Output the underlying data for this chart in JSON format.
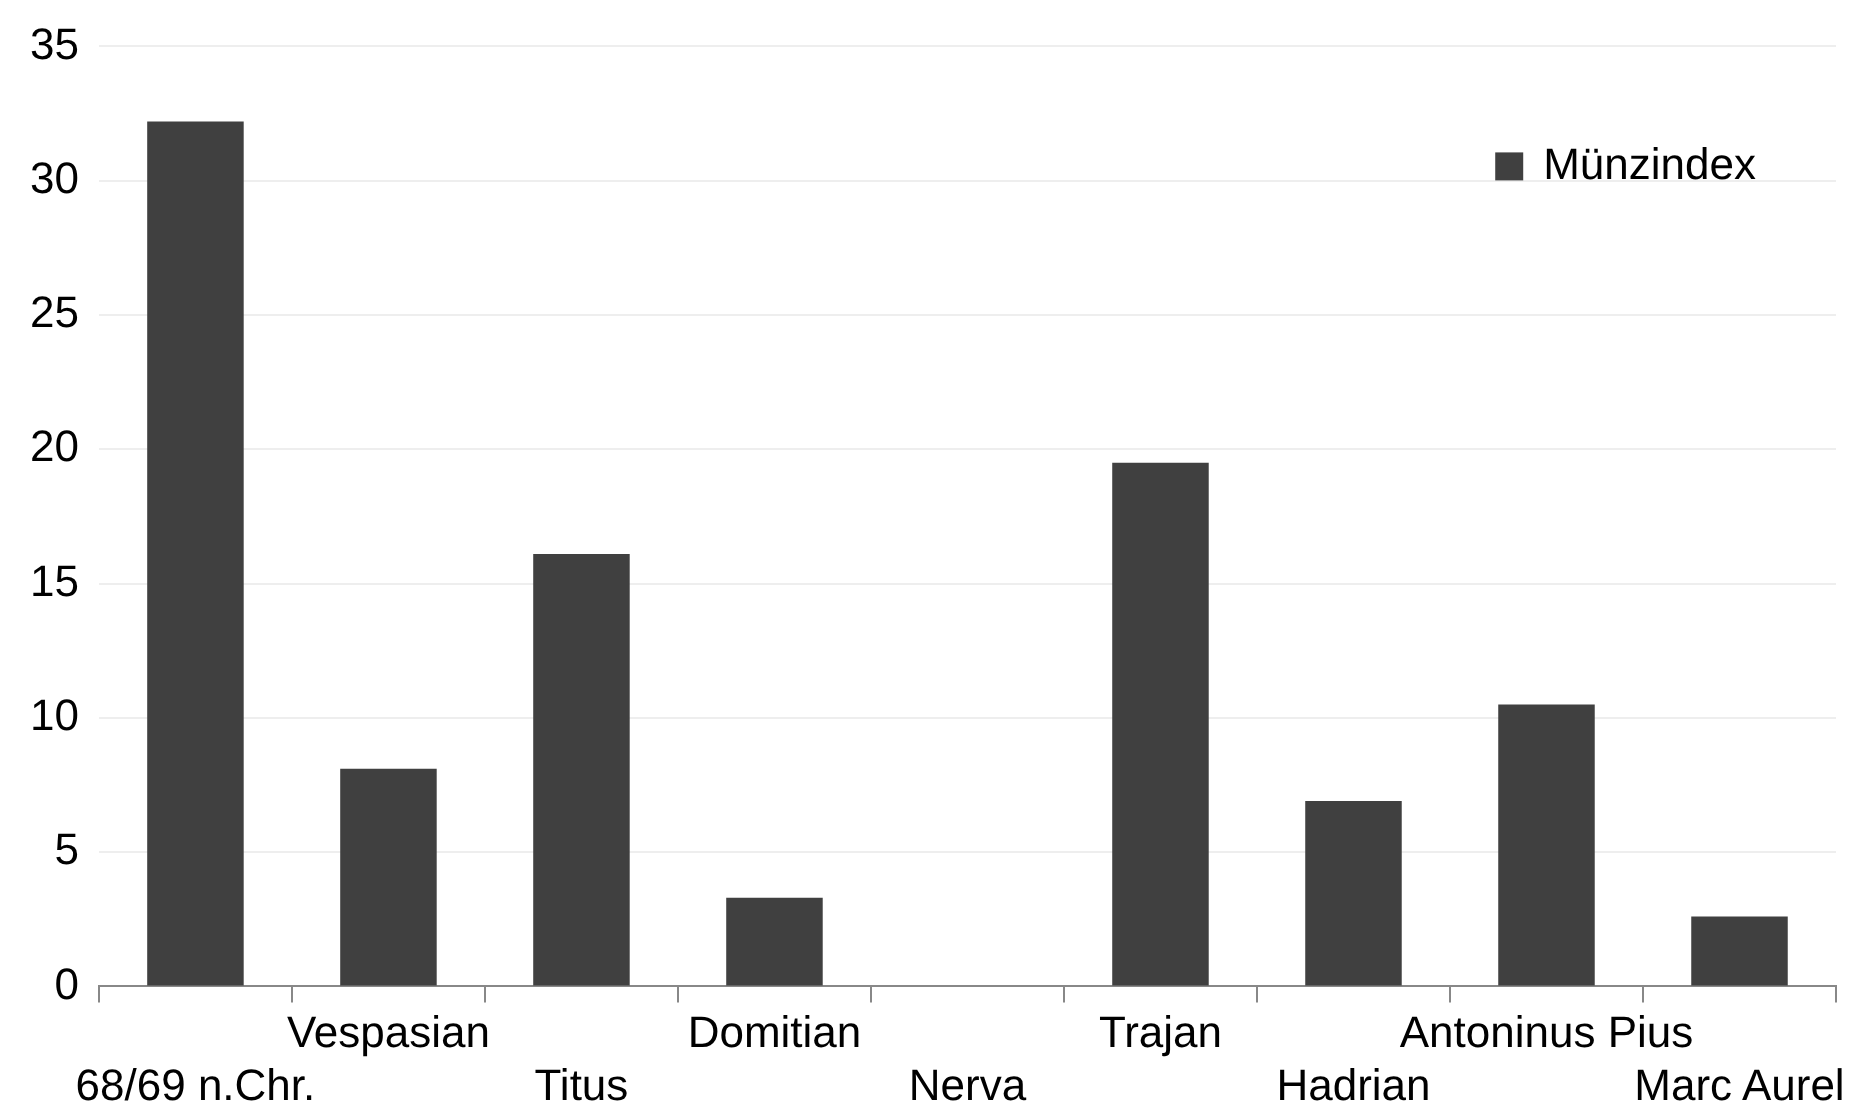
{
  "chart_data": {
    "type": "bar",
    "categories": [
      "68/69 n.Chr.",
      "Vespasian",
      "Titus",
      "Domitian",
      "Nerva",
      "Trajan",
      "Hadrian",
      "Antoninus Pius",
      "Marc Aurel"
    ],
    "series": [
      {
        "name": "Münzindex",
        "color": "#404040",
        "values": [
          32.2,
          8.1,
          16.1,
          3.3,
          0,
          19.5,
          6.9,
          10.5,
          2.6
        ]
      }
    ],
    "ylim": [
      0,
      35
    ],
    "yticks": [
      0,
      5,
      10,
      15,
      20,
      25,
      30,
      35
    ],
    "grid": "y",
    "legend": "top right"
  }
}
